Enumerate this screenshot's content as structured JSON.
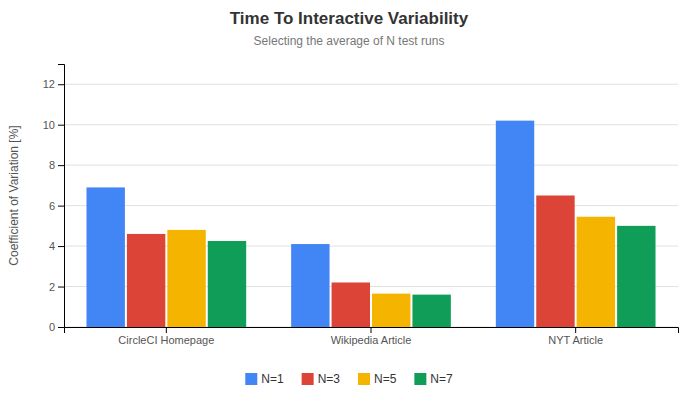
{
  "chart_data": {
    "type": "bar",
    "title": "Time To Interactive Variability",
    "subtitle": "Selecting the average of N test runs",
    "categories": [
      "CircleCI Homepage",
      "Wikipedia Article",
      "NYT Article"
    ],
    "series": [
      {
        "name": "N=1",
        "color": "#4285F4",
        "values": [
          6.9,
          4.1,
          10.2
        ]
      },
      {
        "name": "N=3",
        "color": "#DB4437",
        "values": [
          4.6,
          2.2,
          6.5
        ]
      },
      {
        "name": "N=5",
        "color": "#F4B400",
        "values": [
          4.8,
          1.65,
          5.45
        ]
      },
      {
        "name": "N=7",
        "color": "#0F9D58",
        "values": [
          4.25,
          1.6,
          5.0
        ]
      }
    ],
    "ylabel": "Coefficient of Variation [%]",
    "ylim": [
      0,
      13
    ],
    "yticks": [
      0,
      2,
      4,
      6,
      8,
      10,
      12
    ],
    "grid": true,
    "legend": "bottom"
  }
}
